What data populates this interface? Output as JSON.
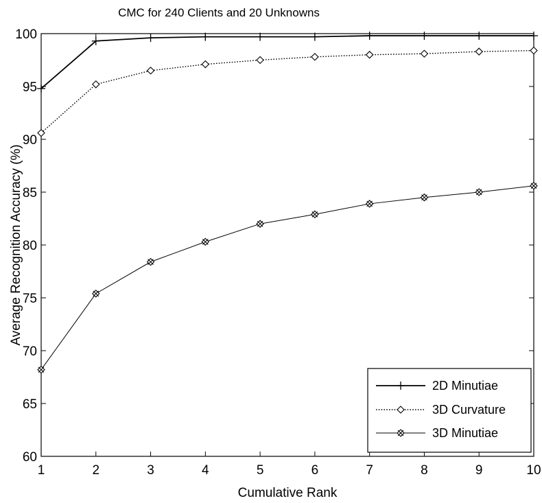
{
  "chart_data": {
    "type": "line",
    "title": "CMC for 240 Clients and 20 Unknowns",
    "xlabel": "Cumulative Rank",
    "ylabel": "Average Recognition Accuracy (%)",
    "x": [
      1,
      2,
      3,
      4,
      5,
      6,
      7,
      8,
      9,
      10
    ],
    "xlim": [
      1,
      10
    ],
    "ylim": [
      60,
      100
    ],
    "xticks": [
      "1",
      "2",
      "3",
      "4",
      "5",
      "6",
      "7",
      "8",
      "9",
      "10"
    ],
    "yticks": [
      "60",
      "65",
      "70",
      "75",
      "80",
      "85",
      "90",
      "95",
      "100"
    ],
    "grid": false,
    "legend_position": "bottom-right",
    "series": [
      {
        "name": "2D Minutiae",
        "values": [
          94.8,
          99.3,
          99.6,
          99.7,
          99.7,
          99.7,
          99.8,
          99.8,
          99.8,
          99.8
        ],
        "color": "#000000",
        "style": "solid",
        "marker": "plus"
      },
      {
        "name": "3D Curvature",
        "values": [
          90.6,
          95.2,
          96.5,
          97.1,
          97.5,
          97.8,
          98.0,
          98.1,
          98.3,
          98.4
        ],
        "color": "#000000",
        "style": "dotted",
        "marker": "diamond"
      },
      {
        "name": "3D Minutiae",
        "values": [
          68.2,
          75.4,
          78.4,
          80.3,
          82.0,
          82.9,
          83.9,
          84.5,
          85.0,
          85.6
        ],
        "color": "#000000",
        "style": "thin",
        "marker": "star"
      }
    ]
  }
}
